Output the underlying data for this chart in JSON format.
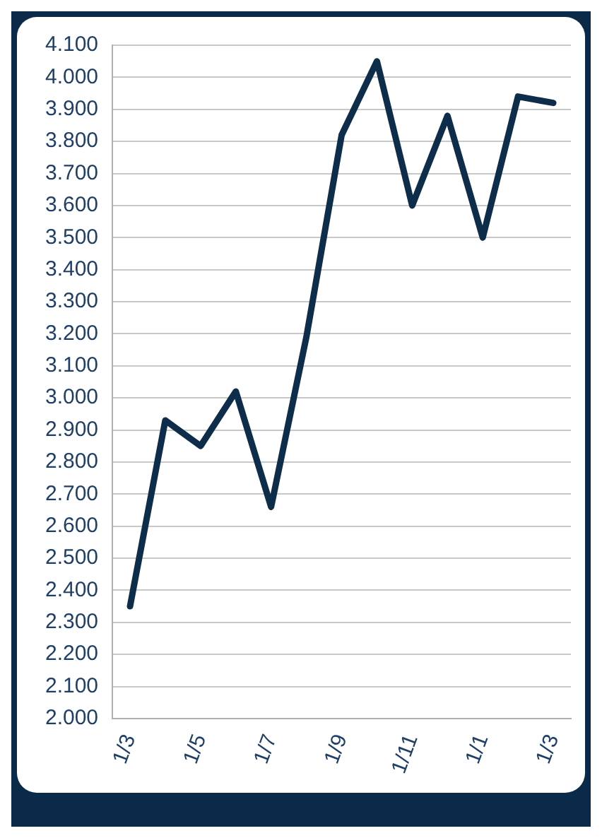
{
  "chart_data": {
    "type": "line",
    "categories": [
      "1/3",
      null,
      "1/5",
      null,
      "1/7",
      null,
      "1/9",
      null,
      "1/11",
      null,
      "1/1",
      null,
      "1/3"
    ],
    "series": [
      {
        "color": "#0d2d4a",
        "values": [
          2.35,
          2.93,
          2.85,
          3.02,
          2.66,
          3.19,
          3.82,
          4.05,
          3.6,
          3.88,
          3.5,
          3.94,
          3.92
        ]
      }
    ],
    "ylim": [
      2.0,
      4.1
    ],
    "yticks": [
      {
        "value": 2.0,
        "label": "2.000"
      },
      {
        "value": 2.1,
        "label": "2.100"
      },
      {
        "value": 2.2,
        "label": "2.200"
      },
      {
        "value": 2.3,
        "label": "2.300"
      },
      {
        "value": 2.4,
        "label": "2.400"
      },
      {
        "value": 2.5,
        "label": "2.500"
      },
      {
        "value": 2.6,
        "label": "2.600"
      },
      {
        "value": 2.7,
        "label": "2.700"
      },
      {
        "value": 2.8,
        "label": "2.800"
      },
      {
        "value": 2.9,
        "label": "2.900"
      },
      {
        "value": 3.0,
        "label": "3.000"
      },
      {
        "value": 3.1,
        "label": "3.100"
      },
      {
        "value": 3.2,
        "label": "3.200"
      },
      {
        "value": 3.3,
        "label": "3.300"
      },
      {
        "value": 3.4,
        "label": "3.400"
      },
      {
        "value": 3.5,
        "label": "3.500"
      },
      {
        "value": 3.6,
        "label": "3.600"
      },
      {
        "value": 3.7,
        "label": "3.700"
      },
      {
        "value": 3.8,
        "label": "3.800"
      },
      {
        "value": 3.9,
        "label": "3.900"
      },
      {
        "value": 4.0,
        "label": "4.000"
      },
      {
        "value": 4.1,
        "label": "4.100"
      }
    ],
    "grid": "y",
    "legend": false,
    "marker": "none",
    "line_style": "solid"
  }
}
